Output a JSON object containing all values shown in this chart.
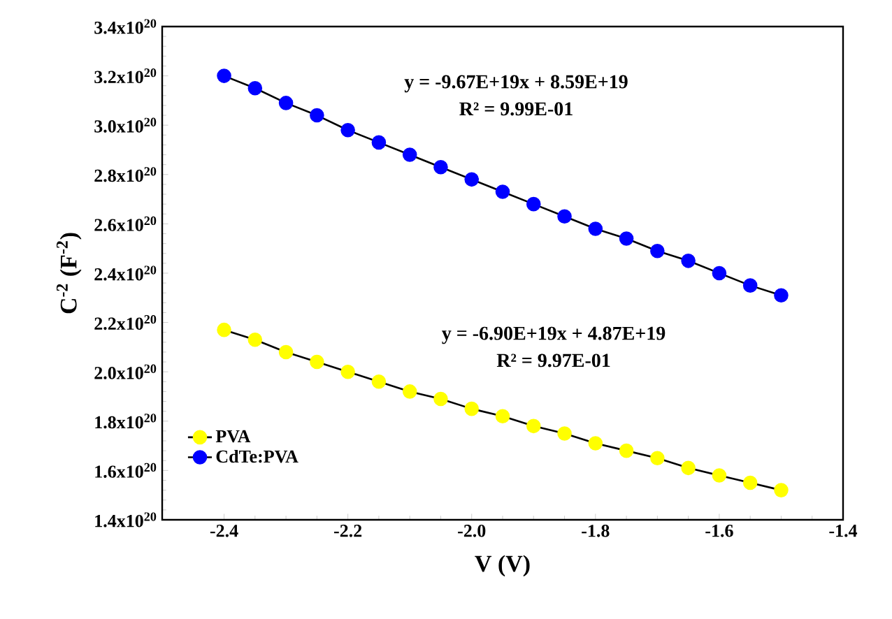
{
  "chart_data": {
    "type": "line",
    "xlabel": "V (V)",
    "ylabel": "C$^{-2}$ (F$^{-2}$)",
    "x": [
      -2.4,
      -2.35,
      -2.3,
      -2.25,
      -2.2,
      -2.15,
      -2.1,
      -2.05,
      -2.0,
      -1.95,
      -1.9,
      -1.85,
      -1.8,
      -1.75,
      -1.7,
      -1.65,
      -1.6,
      -1.55,
      -1.5
    ],
    "series": [
      {
        "name": "PVA",
        "color": "#ffff00",
        "values": [
          2.17e+20,
          2.13e+20,
          2.08e+20,
          2.04e+20,
          2e+20,
          1.96e+20,
          1.92e+20,
          1.89e+20,
          1.85e+20,
          1.82e+20,
          1.78e+20,
          1.75e+20,
          1.71e+20,
          1.68e+20,
          1.65e+20,
          1.61e+20,
          1.58e+20,
          1.55e+20,
          1.52e+20
        ]
      },
      {
        "name": "CdTe:PVA",
        "color": "#0000ff",
        "values": [
          3.2e+20,
          3.15e+20,
          3.09e+20,
          3.04e+20,
          2.98e+20,
          2.93e+20,
          2.88e+20,
          2.83e+20,
          2.78e+20,
          2.73e+20,
          2.68e+20,
          2.63e+20,
          2.58e+20,
          2.54e+20,
          2.49e+20,
          2.45e+20,
          2.4e+20,
          2.35e+20,
          2.31e+20
        ]
      }
    ],
    "xlim": [
      -2.5,
      -1.4
    ],
    "xticks": [
      -2.4,
      -2.2,
      {
        "value": -2.0,
        "label": "-2.0"
      },
      -1.8,
      -1.6,
      -1.4
    ],
    "ylim": [
      1.4e+20,
      3.4e+20
    ],
    "yticks": [
      {
        "value": 1.4e+20,
        "label": "1.4x10$^{20}$"
      },
      {
        "value": 1.6e+20,
        "label": "1.6x10$^{20}$"
      },
      {
        "value": 1.8e+20,
        "label": "1.8x10$^{20}$"
      },
      {
        "value": 2e+20,
        "label": "2.0x10$^{20}$"
      },
      {
        "value": 2.2e+20,
        "label": "2.2x10$^{20}$"
      },
      {
        "value": 2.4e+20,
        "label": "2.4x10$^{20}$"
      },
      {
        "value": 2.6e+20,
        "label": "2.6x10$^{20}$"
      },
      {
        "value": 2.8e+20,
        "label": "2.8x10$^{20}$"
      },
      {
        "value": 3e+20,
        "label": "3.0x10$^{20}$"
      },
      {
        "value": 3.2e+20,
        "label": "3.2x10$^{20}$"
      },
      {
        "value": 3.4e+20,
        "label": "3.4x10$^{20}$"
      }
    ],
    "annotations": [
      "y = -9.67E+19x + 8.59E+19",
      "R² = 9.99E-01",
      "y = -6.90E+19x + 4.87E+19",
      "R² = 9.97E-01"
    ],
    "legend": "bottom left",
    "marker": "circle",
    "line_style": "solid",
    "grid": false
  }
}
